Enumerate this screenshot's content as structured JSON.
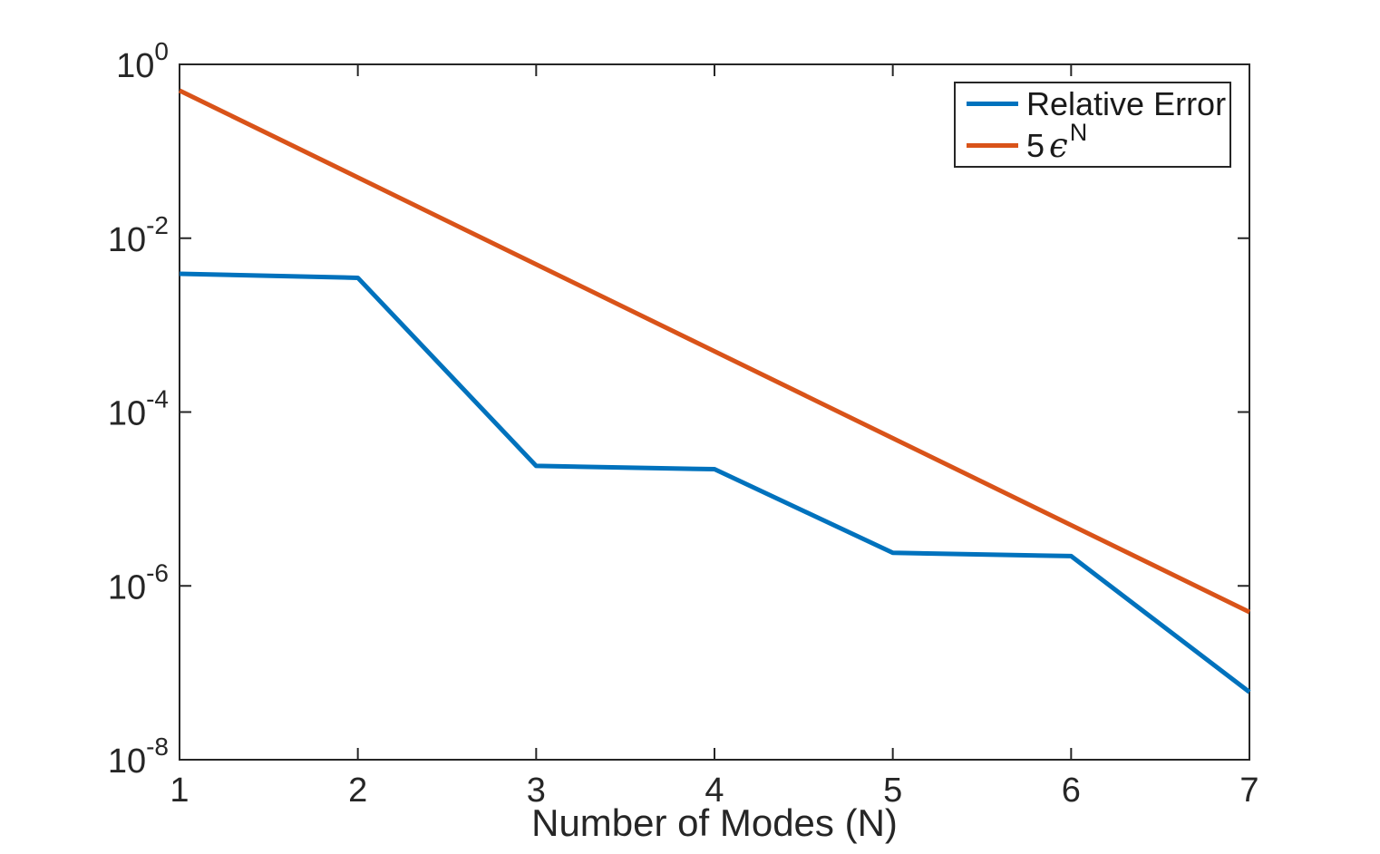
{
  "figure": {
    "background_color": "#ffffff",
    "axis_color": "#262626",
    "xlabel": "Number of Modes (N)",
    "x_tick_labels": [
      "1",
      "2",
      "3",
      "4",
      "5",
      "6",
      "7"
    ],
    "y_tick_base": "10",
    "y_tick_exponents": [
      "0",
      "-2",
      "-4",
      "-6",
      "-8"
    ],
    "legend": {
      "position": "upper right",
      "entries": [
        {
          "label": "Relative Error",
          "color": "#0072BD"
        },
        {
          "label_prefix": "5",
          "label_symbol": "ϵ",
          "label_sup": "N",
          "color": "#D95319"
        }
      ]
    }
  },
  "chart_data": {
    "type": "line",
    "title": "",
    "xlabel": "Number of Modes (N)",
    "ylabel": "",
    "x": [
      1,
      2,
      3,
      4,
      5,
      6,
      7
    ],
    "series": [
      {
        "name": "Relative Error",
        "color": "#0072BD",
        "values": [
          0.0039,
          0.0035,
          2.4e-05,
          2.2e-05,
          2.4e-06,
          2.2e-06,
          6e-08
        ]
      },
      {
        "name": "5 eps^N",
        "color": "#D95319",
        "values": [
          0.5,
          0.05,
          0.005,
          0.0005,
          5e-05,
          5e-06,
          5e-07
        ]
      }
    ],
    "xlim": [
      1,
      7
    ],
    "ylim": [
      1e-08,
      1
    ],
    "xscale": "linear",
    "yscale": "log",
    "grid": false,
    "legend_position": "upper right"
  }
}
